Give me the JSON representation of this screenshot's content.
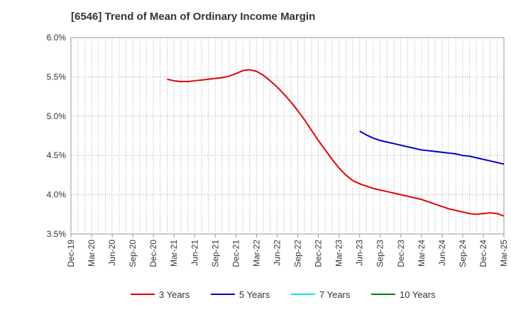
{
  "title": "[6546]  Trend of Mean of Ordinary Income Margin",
  "chart_data": {
    "type": "line",
    "title": "[6546]  Trend of Mean of Ordinary Income Margin",
    "xlabel": "",
    "ylabel": "",
    "ylim": [
      3.5,
      6.0
    ],
    "y_ticks": [
      "3.5%",
      "4.0%",
      "4.5%",
      "5.0%",
      "5.5%",
      "6.0%"
    ],
    "x_ticks": [
      "Dec-19",
      "Mar-20",
      "Jun-20",
      "Sep-20",
      "Dec-20",
      "Mar-21",
      "Jun-21",
      "Sep-21",
      "Dec-21",
      "Mar-22",
      "Jun-22",
      "Sep-22",
      "Dec-22",
      "Mar-23",
      "Jun-23",
      "Sep-23",
      "Dec-23",
      "Mar-24",
      "Jun-24",
      "Sep-24",
      "Dec-24",
      "Mar-25"
    ],
    "x_start": "2019-12",
    "x_end": "2025-03",
    "grid": true,
    "legend_position": "bottom",
    "series": [
      {
        "name": "3 Years",
        "color": "#e60000",
        "points": [
          [
            "2021-02",
            5.47
          ],
          [
            "2021-03",
            5.45
          ],
          [
            "2021-04",
            5.44
          ],
          [
            "2021-05",
            5.44
          ],
          [
            "2021-06",
            5.45
          ],
          [
            "2021-07",
            5.46
          ],
          [
            "2021-08",
            5.47
          ],
          [
            "2021-09",
            5.48
          ],
          [
            "2021-10",
            5.49
          ],
          [
            "2021-11",
            5.51
          ],
          [
            "2021-12",
            5.54
          ],
          [
            "2022-01",
            5.58
          ],
          [
            "2022-02",
            5.59
          ],
          [
            "2022-03",
            5.57
          ],
          [
            "2022-04",
            5.52
          ],
          [
            "2022-05",
            5.45
          ],
          [
            "2022-06",
            5.37
          ],
          [
            "2022-07",
            5.28
          ],
          [
            "2022-08",
            5.18
          ],
          [
            "2022-09",
            5.07
          ],
          [
            "2022-10",
            4.95
          ],
          [
            "2022-11",
            4.82
          ],
          [
            "2022-12",
            4.69
          ],
          [
            "2023-01",
            4.57
          ],
          [
            "2023-02",
            4.45
          ],
          [
            "2023-03",
            4.34
          ],
          [
            "2023-04",
            4.25
          ],
          [
            "2023-05",
            4.18
          ],
          [
            "2023-06",
            4.14
          ],
          [
            "2023-07",
            4.11
          ],
          [
            "2023-08",
            4.08
          ],
          [
            "2023-09",
            4.06
          ],
          [
            "2023-10",
            4.04
          ],
          [
            "2023-11",
            4.02
          ],
          [
            "2023-12",
            4.0
          ],
          [
            "2024-01",
            3.98
          ],
          [
            "2024-02",
            3.96
          ],
          [
            "2024-03",
            3.94
          ],
          [
            "2024-04",
            3.91
          ],
          [
            "2024-05",
            3.88
          ],
          [
            "2024-06",
            3.85
          ],
          [
            "2024-07",
            3.82
          ],
          [
            "2024-08",
            3.8
          ],
          [
            "2024-09",
            3.78
          ],
          [
            "2024-10",
            3.76
          ],
          [
            "2024-11",
            3.75
          ],
          [
            "2024-12",
            3.76
          ],
          [
            "2025-01",
            3.77
          ],
          [
            "2025-02",
            3.76
          ],
          [
            "2025-03",
            3.73
          ]
        ]
      },
      {
        "name": "5 Years",
        "color": "#0000cc",
        "points": [
          [
            "2023-06",
            4.81
          ],
          [
            "2023-07",
            4.76
          ],
          [
            "2023-08",
            4.72
          ],
          [
            "2023-09",
            4.69
          ],
          [
            "2023-10",
            4.67
          ],
          [
            "2023-11",
            4.65
          ],
          [
            "2023-12",
            4.63
          ],
          [
            "2024-01",
            4.61
          ],
          [
            "2024-02",
            4.59
          ],
          [
            "2024-03",
            4.57
          ],
          [
            "2024-04",
            4.56
          ],
          [
            "2024-05",
            4.55
          ],
          [
            "2024-06",
            4.54
          ],
          [
            "2024-07",
            4.53
          ],
          [
            "2024-08",
            4.52
          ],
          [
            "2024-09",
            4.5
          ],
          [
            "2024-10",
            4.49
          ],
          [
            "2024-11",
            4.47
          ],
          [
            "2024-12",
            4.45
          ],
          [
            "2025-01",
            4.43
          ],
          [
            "2025-02",
            4.41
          ],
          [
            "2025-03",
            4.39
          ]
        ]
      },
      {
        "name": "7 Years",
        "color": "#00e5ee",
        "points": []
      },
      {
        "name": "10 Years",
        "color": "#008000",
        "points": []
      }
    ]
  }
}
